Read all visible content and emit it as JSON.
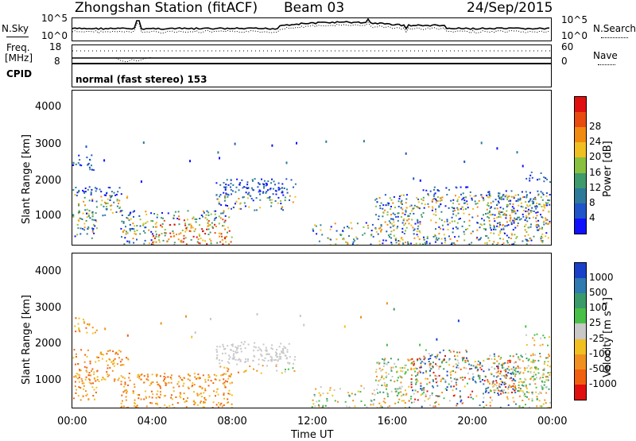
{
  "header": {
    "station": "Zhongshan Station (fitACF)",
    "beam": "Beam 03",
    "date": "24/Sep/2015"
  },
  "noise_panel": {
    "left_label": "N.Sky",
    "left_tick_top": "10^5",
    "left_tick_bottom": "10^0",
    "right_label": "N.Search",
    "right_tick_top": "10^5",
    "right_tick_bottom": "10^0"
  },
  "freq_panel": {
    "left_label_line1": "Freq.",
    "left_label_line2": "[MHz]",
    "left_tick_top": "18",
    "left_tick_bottom": "8",
    "right_label": "Nave",
    "right_tick_top": "60",
    "right_tick_bottom": "0"
  },
  "cpid_panel": {
    "label": "CPID",
    "text": "normal (fast stereo) 153"
  },
  "chart_data": [
    {
      "type": "heatmap",
      "name": "Power",
      "ylabel": "Slant Range [km]",
      "xlabel": "Time UT",
      "ylim": [
        180,
        4500
      ],
      "yticks": [
        "1000",
        "2000",
        "3000",
        "4000"
      ],
      "colorbar_label": "Power [dB]",
      "colorbar_ticks": [
        "4",
        "8",
        "12",
        "16",
        "20",
        "24",
        "28"
      ],
      "colorbar_colors": [
        "#1010ff",
        "#1f55c8",
        "#2d7a9a",
        "#3f9a6c",
        "#88c040",
        "#f0c020",
        "#f08a10",
        "#e84a10",
        "#e01010"
      ]
    },
    {
      "type": "heatmap",
      "name": "Velocity",
      "ylabel": "Slant Range [km]",
      "xlabel": "Time UT",
      "ylim": [
        180,
        4500
      ],
      "yticks": [
        "1000",
        "2000",
        "3000",
        "4000"
      ],
      "colorbar_label": "Velocity [m s⁻¹]",
      "colorbar_ticks": [
        "1000",
        "500",
        "100",
        "25",
        "-25",
        "-100",
        "-500",
        "-1000"
      ],
      "colorbar_colors": [
        "#1a40c8",
        "#2f7ab0",
        "#3a9a6a",
        "#48c048",
        "#c8c8c8",
        "#f0c020",
        "#f09020",
        "#f06010",
        "#e01010"
      ]
    }
  ],
  "x_axis": {
    "label": "Time UT",
    "ticks": [
      "00:00",
      "04:00",
      "08:00",
      "12:00",
      "16:00",
      "20:00",
      "00:00"
    ]
  }
}
